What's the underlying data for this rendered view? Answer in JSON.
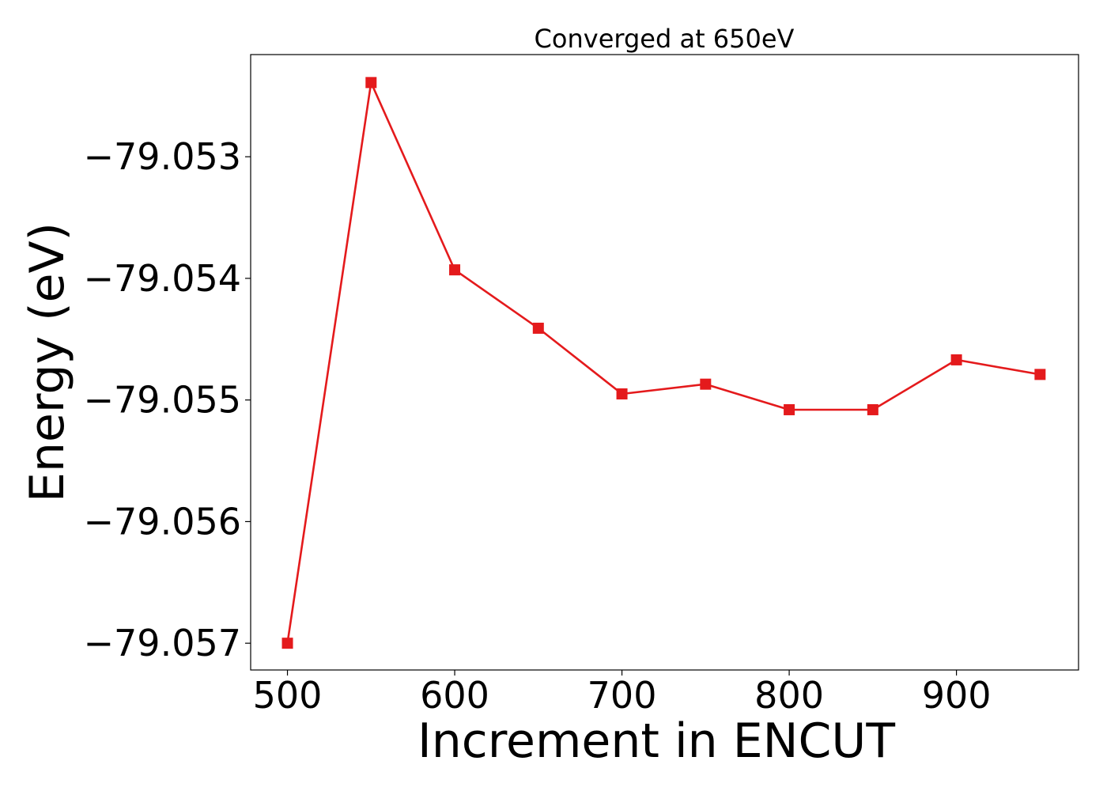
{
  "chart_data": {
    "type": "line",
    "title": "Converged at 650eV",
    "xlabel": "Increment in ENCUT",
    "ylabel": "Energy (eV)",
    "x": [
      500,
      550,
      600,
      650,
      700,
      750,
      800,
      850,
      900,
      950
    ],
    "series": [
      {
        "values": [
          -79.057,
          -79.05239,
          -79.05393,
          -79.05441,
          -79.05495,
          -79.05487,
          -79.05508,
          -79.05508,
          -79.05467,
          -79.05479
        ],
        "color": "#e41a1c",
        "marker": "square"
      }
    ],
    "xlim": [
      478,
      973
    ],
    "ylim": [
      -79.05722,
      -79.05216
    ],
    "xticks": [
      500,
      600,
      700,
      800,
      900
    ],
    "xtick_labels": [
      "500",
      "600",
      "700",
      "800",
      "900"
    ],
    "yticks": [
      -79.053,
      -79.054,
      -79.055,
      -79.056,
      -79.057
    ],
    "ytick_labels": [
      "−79.053",
      "−79.054",
      "−79.055",
      "−79.056",
      "−79.057"
    ],
    "grid": false,
    "legend": "none"
  }
}
